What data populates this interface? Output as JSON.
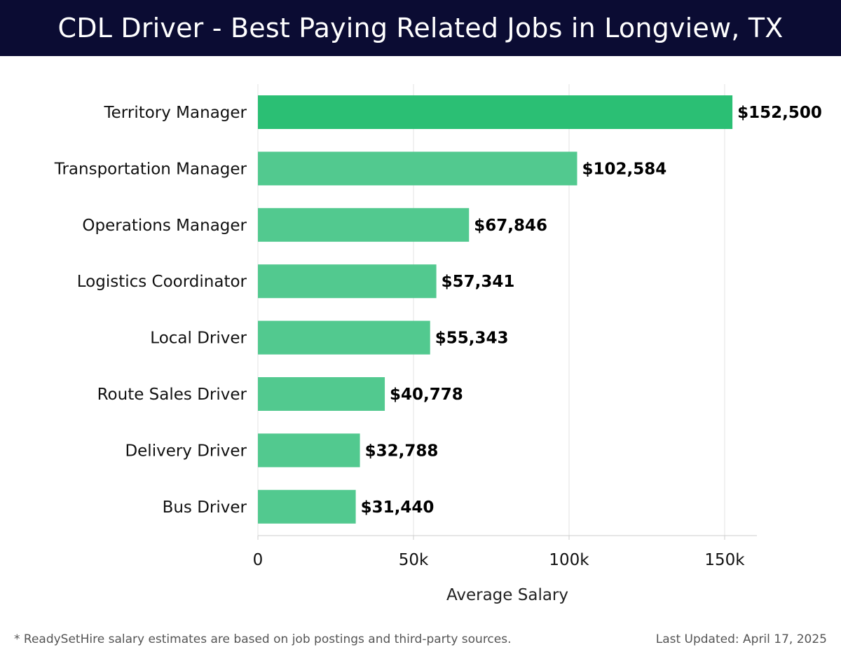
{
  "header": {
    "title": "CDL Driver - Best Paying Related Jobs in Longview, TX"
  },
  "footer": {
    "note": "* ReadySetHire salary estimates are based on job postings and third-party sources.",
    "updated": "Last Updated: April 17, 2025"
  },
  "colors": {
    "header_bg": "#0b0c33",
    "bar_top": "#2bbf74",
    "bar_other": "#52c98f"
  },
  "chart_data": {
    "type": "bar",
    "orientation": "horizontal",
    "title": "CDL Driver - Best Paying Related Jobs in Longview, TX",
    "xlabel": "Average Salary",
    "ylabel": "",
    "xlim": [
      0,
      160000
    ],
    "grid": true,
    "categories": [
      "Territory Manager",
      "Transportation Manager",
      "Operations Manager",
      "Logistics Coordinator",
      "Local Driver",
      "Route Sales Driver",
      "Delivery Driver",
      "Bus Driver"
    ],
    "values": [
      152500,
      102584,
      67846,
      57341,
      55343,
      40778,
      32788,
      31440
    ],
    "value_labels": [
      "$152,500",
      "$102,584",
      "$67,846",
      "$57,341",
      "$55,343",
      "$40,778",
      "$32,788",
      "$31,440"
    ],
    "ticks": [
      0,
      50000,
      100000,
      150000
    ],
    "tick_labels": [
      "0",
      "50k",
      "100k",
      "150k"
    ]
  }
}
